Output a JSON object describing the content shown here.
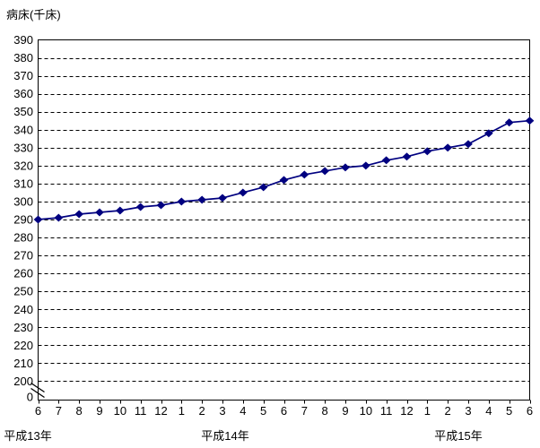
{
  "chart_data": {
    "type": "line",
    "title": "病床(千床)",
    "grid": "dashed-horizontal",
    "legend": "none",
    "y_axis": {
      "max": 390,
      "min": 200,
      "step": 10,
      "zero_label": "0",
      "axis_break": true
    },
    "x_axis": {
      "month_labels": [
        "6",
        "7",
        "8",
        "9",
        "10",
        "11",
        "12",
        "1",
        "2",
        "3",
        "4",
        "5",
        "6",
        "7",
        "8",
        "9",
        "10",
        "11",
        "12",
        "1",
        "2",
        "3",
        "4",
        "5",
        "6"
      ],
      "year_labels": [
        "平成13年",
        "平成14年",
        "平成15年"
      ]
    },
    "series": [
      {
        "marker": "diamond",
        "color": "#000080",
        "values": [
          290,
          291,
          293,
          294,
          295,
          297,
          298,
          300,
          301,
          302,
          305,
          308,
          312,
          315,
          317,
          319,
          320,
          323,
          325,
          328,
          330,
          332,
          338,
          344,
          345
        ]
      }
    ],
    "colors": {
      "line": "#000080",
      "axis": "#000000",
      "background": "#ffffff"
    }
  }
}
